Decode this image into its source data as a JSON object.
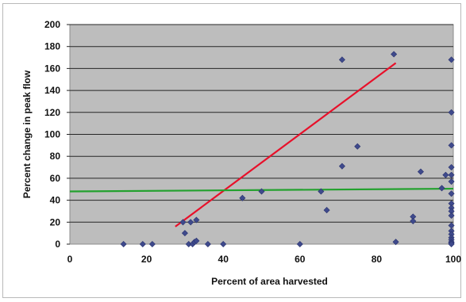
{
  "top_fragment_text": "",
  "chart_data": {
    "type": "scatter",
    "title": "",
    "xlabel": "Percent of area harvested",
    "ylabel": "Percent change in peak flow",
    "xlim": [
      0,
      100
    ],
    "ylim": [
      0,
      200
    ],
    "x_ticks": [
      "0",
      "20",
      "40",
      "60",
      "80",
      "100"
    ],
    "y_ticks": [
      "0",
      "20",
      "40",
      "60",
      "80",
      "100",
      "120",
      "140",
      "160",
      "180",
      "200"
    ],
    "grid": "horizontal",
    "plot_background": "#bdbdbd",
    "marker_color": "#3f4a8c",
    "points": {
      "x": [
        14,
        19,
        21.5,
        29.5,
        30,
        31,
        31.5,
        32,
        32.5,
        33,
        33,
        36,
        40,
        45,
        50,
        60,
        65.5,
        67,
        71,
        71,
        75,
        84.5,
        85,
        89.5,
        89.5,
        91.5,
        97,
        98,
        99.5,
        99.5,
        99.5,
        99.5,
        99.5,
        99.5,
        99.5,
        99.5,
        99.5,
        99.5,
        99.5,
        99.5,
        99.5,
        99.5,
        99.5,
        99.5,
        99.5,
        99.5,
        99.5
      ],
      "y": [
        0,
        0,
        0,
        20,
        10,
        0,
        20,
        0,
        2,
        3,
        22,
        0,
        0,
        42,
        48,
        0,
        48,
        31,
        71,
        168,
        89,
        173,
        2,
        25,
        21,
        66,
        51,
        63,
        168,
        120,
        90,
        70,
        63,
        57,
        46,
        37,
        33,
        30,
        26,
        17,
        12,
        9,
        6,
        4,
        2,
        1,
        0
      ]
    },
    "lines": [
      {
        "color": "#e8102a",
        "x": [
          27.5,
          85
        ],
        "y": [
          16,
          165
        ]
      },
      {
        "color": "#23a12e",
        "x": [
          0,
          100
        ],
        "y": [
          48,
          50.5
        ]
      }
    ]
  }
}
